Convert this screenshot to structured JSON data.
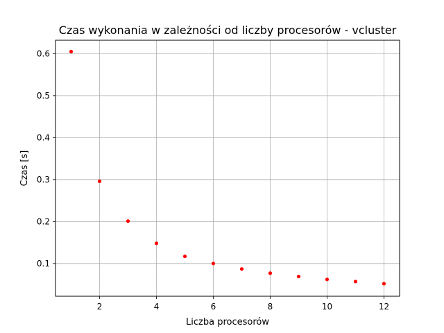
{
  "chart_data": {
    "type": "scatter",
    "title": "Czas wykonania w zależności od liczby procesorów - vcluster",
    "xlabel": "Liczba procesorów",
    "ylabel": "Czas [s]",
    "xlim": [
      0.45,
      12.55
    ],
    "ylim": [
      0.022,
      0.632
    ],
    "xticks": [
      2,
      4,
      6,
      8,
      10,
      12
    ],
    "yticks": [
      0.1,
      0.2,
      0.3,
      0.4,
      0.5,
      0.6
    ],
    "grid": true,
    "marker_color": "#ff0000",
    "series": [
      {
        "x": [
          1,
          2,
          3,
          4,
          5,
          6,
          7,
          8,
          9,
          10,
          11,
          12
        ],
        "y": [
          0.605,
          0.296,
          0.201,
          0.148,
          0.117,
          0.1,
          0.087,
          0.077,
          0.069,
          0.062,
          0.057,
          0.052
        ]
      }
    ]
  }
}
